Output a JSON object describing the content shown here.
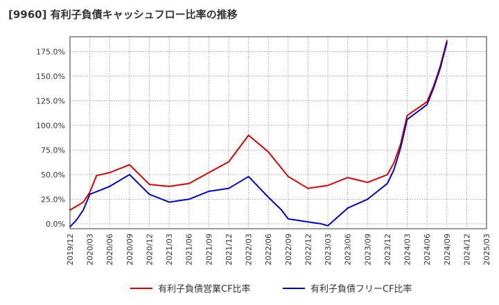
{
  "title": "[9960]  有利子負債キャッシュフロー比率の推移",
  "chart_data": {
    "type": "line",
    "title": "[9960]  有利子負債キャッシュフロー比率の推移",
    "xlabel": "",
    "ylabel": "",
    "x_ticks": [
      "2019/12",
      "2020/03",
      "2020/06",
      "2020/09",
      "2020/12",
      "2021/03",
      "2021/06",
      "2021/09",
      "2021/12",
      "2022/03",
      "2022/06",
      "2022/09",
      "2022/12",
      "2023/03",
      "2023/06",
      "2023/09",
      "2023/12",
      "2024/03",
      "2024/06",
      "2024/09",
      "2024/12",
      "2025/03"
    ],
    "y_ticks": [
      "0.0%",
      "25.0%",
      "50.0%",
      "75.0%",
      "100.0%",
      "125.0%",
      "150.0%",
      "175.0%"
    ],
    "y_tick_values": [
      0,
      25,
      50,
      75,
      100,
      125,
      150,
      175
    ],
    "ylim": [
      -5,
      190
    ],
    "grid": true,
    "legend_position": "bottom",
    "series": [
      {
        "name": "有利子負債営業CF比率",
        "color": "#dd0000",
        "points": [
          [
            "2019/12",
            14
          ],
          [
            "2020/02",
            22
          ],
          [
            "2020/03",
            32
          ],
          [
            "2020/04",
            49
          ],
          [
            "2020/06",
            52
          ],
          [
            "2020/09",
            60
          ],
          [
            "2020/12",
            40
          ],
          [
            "2021/03",
            38
          ],
          [
            "2021/06",
            41
          ],
          [
            "2021/09",
            52
          ],
          [
            "2021/12",
            63
          ],
          [
            "2022/03",
            90
          ],
          [
            "2022/06",
            73
          ],
          [
            "2022/09",
            48
          ],
          [
            "2022/12",
            36
          ],
          [
            "2023/03",
            39
          ],
          [
            "2023/06",
            47
          ],
          [
            "2023/09",
            42
          ],
          [
            "2023/12",
            50
          ],
          [
            "2024/01",
            62
          ],
          [
            "2024/02",
            81
          ],
          [
            "2024/03",
            110
          ],
          [
            "2024/06",
            124
          ],
          [
            "2024/07",
            140
          ],
          [
            "2024/08",
            160
          ],
          [
            "2024/09",
            186
          ]
        ]
      },
      {
        "name": "有利子負債フリーCF比率",
        "color": "#0000cc",
        "points": [
          [
            "2019/12",
            -3
          ],
          [
            "2020/01",
            4
          ],
          [
            "2020/02",
            14
          ],
          [
            "2020/03",
            30
          ],
          [
            "2020/06",
            38
          ],
          [
            "2020/09",
            50
          ],
          [
            "2020/12",
            30
          ],
          [
            "2021/03",
            22
          ],
          [
            "2021/06",
            25
          ],
          [
            "2021/09",
            33
          ],
          [
            "2021/12",
            36
          ],
          [
            "2022/03",
            48
          ],
          [
            "2022/06",
            27
          ],
          [
            "2022/08",
            14
          ],
          [
            "2022/09",
            5
          ],
          [
            "2022/12",
            2
          ],
          [
            "2023/02",
            0
          ],
          [
            "2023/03",
            -2
          ],
          [
            "2023/06",
            16
          ],
          [
            "2023/09",
            25
          ],
          [
            "2023/12",
            41
          ],
          [
            "2024/01",
            55
          ],
          [
            "2024/02",
            77
          ],
          [
            "2024/03",
            106
          ],
          [
            "2024/06",
            121
          ],
          [
            "2024/07",
            138
          ],
          [
            "2024/08",
            158
          ],
          [
            "2024/09",
            184
          ]
        ]
      }
    ]
  }
}
